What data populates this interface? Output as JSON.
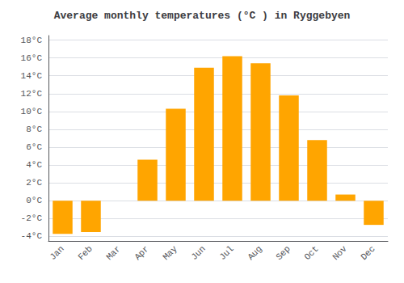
{
  "chart_data": {
    "type": "bar",
    "title": "Average monthly temperatures (°C ) in Ryggebyen",
    "categories": [
      "Jan",
      "Feb",
      "Mar",
      "Apr",
      "May",
      "Jun",
      "Jul",
      "Aug",
      "Sep",
      "Oct",
      "Nov",
      "Dec"
    ],
    "values": [
      -3.7,
      -3.5,
      0.0,
      4.6,
      10.3,
      14.9,
      16.2,
      15.4,
      11.8,
      6.8,
      0.7,
      -2.7
    ],
    "color": "#FFA500",
    "ylim": [
      -4.5,
      18.5
    ],
    "yticks": [
      {
        "value": -4,
        "label": "-4°C"
      },
      {
        "value": -2,
        "label": "-2°C"
      },
      {
        "value": 0,
        "label": "0°C"
      },
      {
        "value": 2,
        "label": "2°C"
      },
      {
        "value": 4,
        "label": "4°C"
      },
      {
        "value": 6,
        "label": "6°C"
      },
      {
        "value": 8,
        "label": "8°C"
      },
      {
        "value": 10,
        "label": "10°C"
      },
      {
        "value": 12,
        "label": "12°C"
      },
      {
        "value": 14,
        "label": "14°C"
      },
      {
        "value": 16,
        "label": "16°C"
      },
      {
        "value": 18,
        "label": "18°C"
      }
    ],
    "grid": true
  }
}
